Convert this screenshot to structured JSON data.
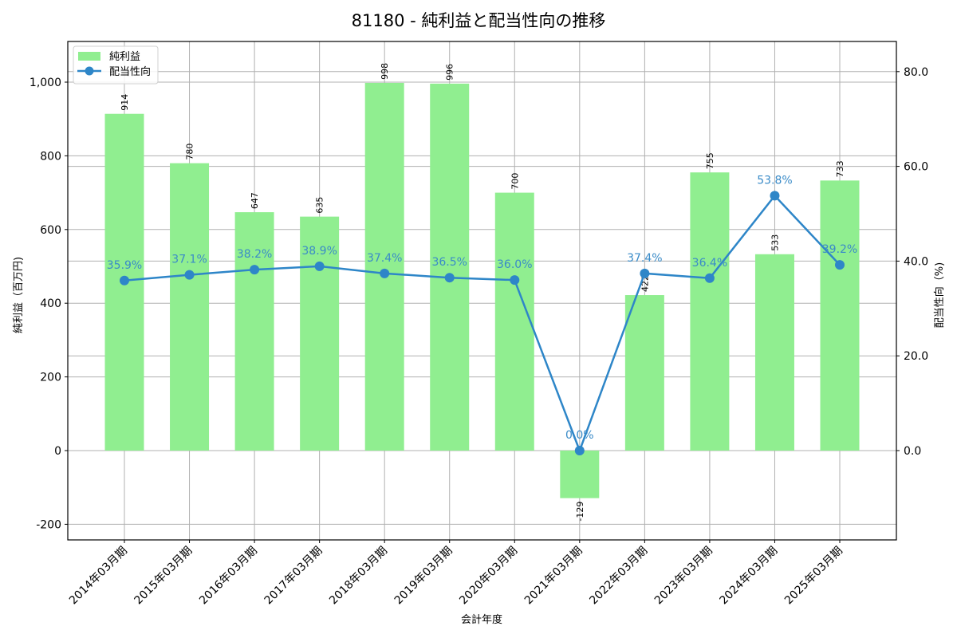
{
  "chart_data": {
    "type": "bar",
    "title": "81180 - 純利益と配当性向の推移",
    "xlabel": "会計年度",
    "ylabel": "純利益（百万円)",
    "y2label": "配当性向（%)",
    "categories": [
      "2014年03月期",
      "2015年03月期",
      "2016年03月期",
      "2017年03月期",
      "2018年03月期",
      "2019年03月期",
      "2020年03月期",
      "2021年03月期",
      "2022年03月期",
      "2023年03月期",
      "2024年03月期",
      "2025年03月期"
    ],
    "series": [
      {
        "name": "純利益",
        "type": "bar",
        "axis": "left",
        "color": "#90ee90",
        "values": [
          914,
          780,
          647,
          635,
          998,
          996,
          700,
          -129,
          422,
          755,
          533,
          733
        ],
        "labels": [
          "914",
          "780",
          "647",
          "635",
          "998",
          "996",
          "700",
          "-129",
          "422",
          "755",
          "533",
          "733"
        ]
      },
      {
        "name": "配当性向",
        "type": "line",
        "axis": "right",
        "color": "#2e86c8",
        "values": [
          35.9,
          37.1,
          38.2,
          38.9,
          37.4,
          36.5,
          36.0,
          0.0,
          37.4,
          36.4,
          53.8,
          39.2
        ],
        "labels": [
          "35.9%",
          "37.1%",
          "38.2%",
          "38.9%",
          "37.4%",
          "36.5%",
          "36.0%",
          "0.0%",
          "37.4%",
          "36.4%",
          "53.8%",
          "39.2%"
        ]
      }
    ],
    "ylim": [
      -245,
      1110
    ],
    "y2lim": [
      -19,
      86.4
    ],
    "yticks": [
      -200,
      0,
      200,
      400,
      600,
      800,
      1000
    ],
    "ytick_labels": [
      "-200",
      "0",
      "200",
      "400",
      "600",
      "800",
      "1,000"
    ],
    "y2ticks": [
      0,
      20,
      40,
      60,
      80
    ],
    "y2tick_labels": [
      "0.0",
      "20.0",
      "40.0",
      "60.0",
      "80.0"
    ],
    "grid": true,
    "legend_position": "upper left",
    "legend": [
      {
        "label": "純利益",
        "kind": "bar"
      },
      {
        "label": "配当性向",
        "kind": "line-marker"
      }
    ]
  }
}
